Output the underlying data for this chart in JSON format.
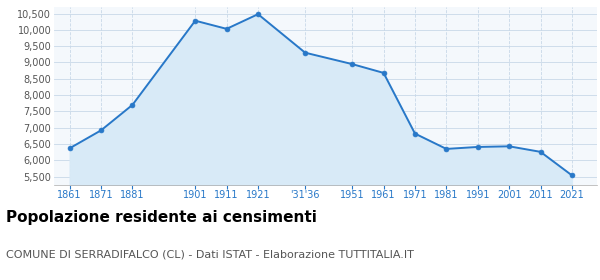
{
  "years_x": [
    0,
    1,
    2,
    4,
    5,
    6,
    7.5,
    9,
    10,
    11,
    12,
    13,
    14,
    15,
    16
  ],
  "population": [
    6370,
    6920,
    7700,
    10280,
    10030,
    10480,
    9300,
    8950,
    8680,
    6820,
    6350,
    6410,
    6430,
    6260,
    5540
  ],
  "xtick_positions": [
    0,
    1,
    2,
    4,
    5,
    6,
    7.5,
    9,
    10,
    11,
    12,
    13,
    14,
    15,
    16
  ],
  "xtick_labels": [
    "1861",
    "1871",
    "1881",
    "1901",
    "1911",
    "1921",
    "'31'36",
    "1951",
    "1961",
    "1971",
    "1981",
    "1991",
    "2001",
    "2011",
    "2021"
  ],
  "ylim": [
    5250,
    10700
  ],
  "yticks": [
    5500,
    6000,
    6500,
    7000,
    7500,
    8000,
    8500,
    9000,
    9500,
    10000,
    10500
  ],
  "line_color": "#2878c8",
  "fill_color": "#d8eaf7",
  "marker_color": "#2878c8",
  "bg_color": "#f4f8fc",
  "grid_color": "#c8d8e8",
  "title": "Popolazione residente ai censimenti",
  "subtitle": "COMUNE DI SERRADIFALCO (CL) - Dati ISTAT - Elaborazione TUTTITALIA.IT",
  "title_fontsize": 11,
  "subtitle_fontsize": 8,
  "xlim": [
    -0.5,
    16.8
  ]
}
